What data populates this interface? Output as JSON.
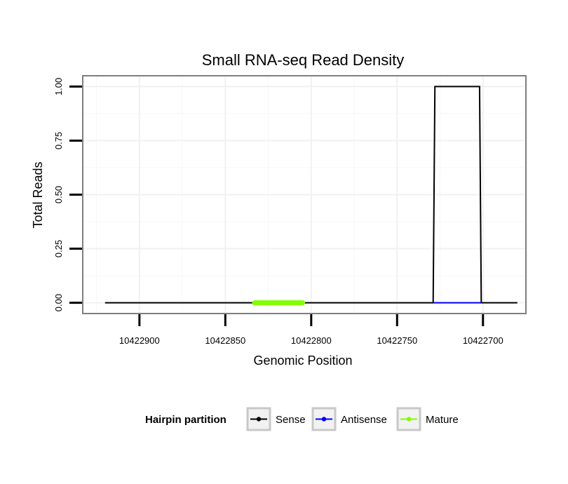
{
  "chart_data": {
    "type": "line",
    "title": "Small RNA-seq Read Density",
    "xlabel": "Genomic Position",
    "ylabel": "Total Reads",
    "x_reversed": true,
    "xlim": [
      10422933,
      10422675
    ],
    "ylim": [
      -0.05,
      1.05
    ],
    "x_ticks": [
      10422900,
      10422850,
      10422800,
      10422750,
      10422700
    ],
    "x_tick_labels": [
      "10422900",
      "10422850",
      "10422800",
      "10422750",
      "10422700"
    ],
    "y_ticks": [
      0,
      0.25,
      0.5,
      0.75,
      1
    ],
    "y_tick_labels": [
      "0.00",
      "0.25",
      "0.50",
      "0.75",
      "1.00"
    ],
    "grid": true,
    "series": [
      {
        "name": "Sense",
        "color": "#000000",
        "x": [
          10422920,
          10422729,
          10422728,
          10422702,
          10422701,
          10422680
        ],
        "y": [
          0,
          0,
          1,
          1,
          0,
          0
        ]
      },
      {
        "name": "Antisense",
        "color": "#0000ff",
        "x": [
          10422729,
          10422701
        ],
        "y": [
          0,
          0
        ]
      },
      {
        "name": "Mature",
        "color": "#7fff00",
        "x": [
          10422833,
          10422805
        ],
        "y": [
          0,
          0
        ]
      }
    ],
    "legend": {
      "title": "Hairpin partition",
      "placement": "bottom",
      "entries": [
        "Sense",
        "Antisense",
        "Mature"
      ]
    }
  }
}
